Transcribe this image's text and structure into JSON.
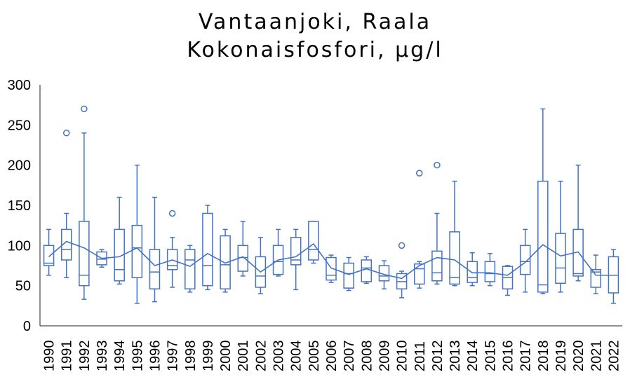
{
  "chart_data": {
    "type": "box",
    "title": "Vantaanjoki, Raala",
    "subtitle": "Kokonaisfosfori, µg/l",
    "xlabel": "",
    "ylabel": "",
    "ylim": [
      0,
      300
    ],
    "yticks": [
      0,
      50,
      100,
      150,
      200,
      250,
      300
    ],
    "grid": false,
    "legend": "none",
    "color": "#4472c4",
    "categories": [
      "1990",
      "1991",
      "1992",
      "1993",
      "1994",
      "1995",
      "1996",
      "1997",
      "1998",
      "1999",
      "2000",
      "2001",
      "2002",
      "2003",
      "2004",
      "2005",
      "2006",
      "2007",
      "2008",
      "2009",
      "2010",
      "2011",
      "2012",
      "2013",
      "2014",
      "2015",
      "2016",
      "2017",
      "2018",
      "2019",
      "2020",
      "2021",
      "2022"
    ],
    "boxes": [
      {
        "year": "1990",
        "min": 63,
        "q1": 75,
        "median": 78,
        "q3": 100,
        "max": 120,
        "mean": 86,
        "outliers": []
      },
      {
        "year": "1991",
        "min": 60,
        "q1": 82,
        "median": 95,
        "q3": 120,
        "max": 140,
        "mean": 105,
        "outliers": [
          240
        ]
      },
      {
        "year": "1992",
        "min": 33,
        "q1": 50,
        "median": 63,
        "q3": 130,
        "max": 240,
        "mean": 97,
        "outliers": [
          270
        ]
      },
      {
        "year": "1993",
        "min": 73,
        "q1": 76,
        "median": 83,
        "q3": 92,
        "max": 95,
        "mean": 84,
        "outliers": []
      },
      {
        "year": "1994",
        "min": 52,
        "q1": 56,
        "median": 70,
        "q3": 120,
        "max": 160,
        "mean": 86,
        "outliers": []
      },
      {
        "year": "1995",
        "min": 28,
        "q1": 60,
        "median": 97,
        "q3": 125,
        "max": 200,
        "mean": 97,
        "outliers": []
      },
      {
        "year": "1996",
        "min": 30,
        "q1": 46,
        "median": 67,
        "q3": 95,
        "max": 160,
        "mean": 75,
        "outliers": []
      },
      {
        "year": "1997",
        "min": 48,
        "q1": 70,
        "median": 75,
        "q3": 95,
        "max": 110,
        "mean": 82,
        "outliers": [
          140
        ]
      },
      {
        "year": "1998",
        "min": 42,
        "q1": 46,
        "median": 82,
        "q3": 95,
        "max": 100,
        "mean": 74,
        "outliers": []
      },
      {
        "year": "1999",
        "min": 45,
        "q1": 50,
        "median": 75,
        "q3": 140,
        "max": 150,
        "mean": 90,
        "outliers": []
      },
      {
        "year": "2000",
        "min": 42,
        "q1": 46,
        "median": 76,
        "q3": 112,
        "max": 120,
        "mean": 78,
        "outliers": []
      },
      {
        "year": "2001",
        "min": 62,
        "q1": 68,
        "median": 85,
        "q3": 100,
        "max": 130,
        "mean": 86,
        "outliers": []
      },
      {
        "year": "2002",
        "min": 40,
        "q1": 48,
        "median": 62,
        "q3": 86,
        "max": 110,
        "mean": 67,
        "outliers": []
      },
      {
        "year": "2003",
        "min": 62,
        "q1": 64,
        "median": 80,
        "q3": 100,
        "max": 120,
        "mean": 82,
        "outliers": []
      },
      {
        "year": "2004",
        "min": 45,
        "q1": 76,
        "median": 82,
        "q3": 110,
        "max": 120,
        "mean": 86,
        "outliers": []
      },
      {
        "year": "2005",
        "min": 78,
        "q1": 82,
        "median": 95,
        "q3": 130,
        "max": 130,
        "mean": 102,
        "outliers": []
      },
      {
        "year": "2006",
        "min": 54,
        "q1": 57,
        "median": 63,
        "q3": 85,
        "max": 88,
        "mean": 72,
        "outliers": []
      },
      {
        "year": "2007",
        "min": 44,
        "q1": 47,
        "median": 65,
        "q3": 78,
        "max": 85,
        "mean": 64,
        "outliers": []
      },
      {
        "year": "2008",
        "min": 53,
        "q1": 55,
        "median": 72,
        "q3": 82,
        "max": 86,
        "mean": 71,
        "outliers": []
      },
      {
        "year": "2009",
        "min": 46,
        "q1": 56,
        "median": 62,
        "q3": 75,
        "max": 81,
        "mean": 64,
        "outliers": []
      },
      {
        "year": "2010",
        "min": 35,
        "q1": 46,
        "median": 55,
        "q3": 65,
        "max": 68,
        "mean": 59,
        "outliers": [
          100
        ]
      },
      {
        "year": "2011",
        "min": 47,
        "q1": 52,
        "median": 71,
        "q3": 77,
        "max": 80,
        "mean": 75,
        "outliers": [
          190
        ]
      },
      {
        "year": "2012",
        "min": 52,
        "q1": 56,
        "median": 66,
        "q3": 93,
        "max": 140,
        "mean": 85,
        "outliers": [
          200
        ]
      },
      {
        "year": "2013",
        "min": 50,
        "q1": 52,
        "median": 60,
        "q3": 117,
        "max": 180,
        "mean": 82,
        "outliers": []
      },
      {
        "year": "2014",
        "min": 50,
        "q1": 54,
        "median": 60,
        "q3": 80,
        "max": 91,
        "mean": 66,
        "outliers": []
      },
      {
        "year": "2015",
        "min": 50,
        "q1": 55,
        "median": 65,
        "q3": 80,
        "max": 90,
        "mean": 66,
        "outliers": []
      },
      {
        "year": "2016",
        "min": 38,
        "q1": 46,
        "median": 60,
        "q3": 74,
        "max": 75,
        "mean": 63,
        "outliers": []
      },
      {
        "year": "2017",
        "min": 42,
        "q1": 64,
        "median": 80,
        "q3": 100,
        "max": 120,
        "mean": 79,
        "outliers": []
      },
      {
        "year": "2018",
        "min": 40,
        "q1": 42,
        "median": 51,
        "q3": 180,
        "max": 270,
        "mean": 101,
        "outliers": []
      },
      {
        "year": "2019",
        "min": 42,
        "q1": 53,
        "median": 72,
        "q3": 115,
        "max": 180,
        "mean": 87,
        "outliers": []
      },
      {
        "year": "2020",
        "min": 56,
        "q1": 62,
        "median": 65,
        "q3": 120,
        "max": 200,
        "mean": 92,
        "outliers": []
      },
      {
        "year": "2021",
        "min": 40,
        "q1": 48,
        "median": 67,
        "q3": 70,
        "max": 88,
        "mean": 63,
        "outliers": []
      },
      {
        "year": "2022",
        "min": 28,
        "q1": 41,
        "median": 63,
        "q3": 86,
        "max": 95,
        "mean": 63,
        "outliers": []
      }
    ]
  }
}
